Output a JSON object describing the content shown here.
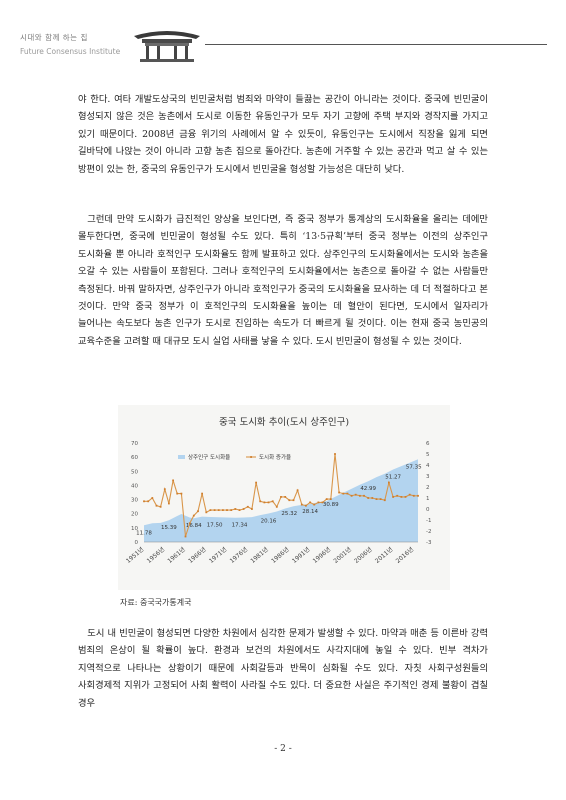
{
  "header": {
    "org_kr": "시대와 함께 하는 집",
    "org_en": "Future Consensus Institute"
  },
  "paragraphs": [
    "야 한다. 여타 개발도상국의 빈민굴처럼 범죄와 마약이 들끓는 공간이 아니라는 것이다. 중국에 빈민굴이 형성되지 않은 것은 농촌에서 도시로 이동한 유동인구가 모두 자기 고향에 주택 부지와 경작지를 가지고 있기 때문이다. 2008년 금융 위기의 사례에서 알 수 있듯이, 유동인구는 도시에서 직장을 잃게 되면 길바닥에 나앉는 것이 아니라 고향 농촌 집으로 돌아간다. 농촌에 거주할 수 있는 공간과 먹고 살 수 있는 방편이 있는 한, 중국의 유동인구가 도시에서 빈민굴을 형성할 가능성은 대단히 낮다.",
    "그런데 만약 도시화가 급진적인 양상을 보인다면, 즉 중국 정부가 통계상의 도시화율을 올리는 데에만 몰두한다면, 중국에 빈민굴이 형성될 수도 있다. 특히 ‘13·5규획’부터 중국 정부는 이전의 상주인구 도시화율 뿐 아니라 호적인구 도시화율도 함께 발표하고 있다. 상주인구의 도시화율에서는 도시와 농촌을 오갈 수 있는 사람들이 포함된다. 그러나 호적인구의 도시화율에서는 농촌으로 돌아갈 수 없는 사람들만 측정된다. 바꿔 말하자면, 상주인구가 아니라 호적인구가 중국의 도시화율을 묘사하는 데 더 적절하다고 본 것이다. 만약 중국 정부가 이 호적인구의 도시화율을 높이는 데 혈안이 된다면, 도시에서 일자리가 늘어나는 속도보다 농촌 인구가 도시로 진입하는 속도가 더 빠르게 될 것이다. 이는 현재 중국 농민공의 교육수준을 고려할 때 대규모 도시 실업 사태를 낳을 수 있다. 도시 빈민굴이 형성될 수 있는 것이다.",
    "도시 내 빈민굴이 형성되면 다양한 차원에서 심각한 문제가 발생할 수 있다. 마약과 매춘 등 이른바 강력 범죄의 온상이 될 확률이 높다. 환경과 보건의 차원에서도 사각지대에 놓일 수 있다. 빈부 격차가 지역적으로 나타나는 상황이기 때문에 사회갈등과 반목이 심화될 수도 있다. 자칫 사회구성원들의 사회경제적 지위가 고정되어 사회 활력이 사라질 수도 있다. 더 중요한 사실은 주기적인 경제 불황이 겹칠 경우"
  ],
  "chart_data": {
    "type": "area",
    "title": "중국 도시화 추이(도시 상주인구)",
    "series": [
      {
        "name": "상주인구 도시화율",
        "type": "area",
        "axis": "left",
        "x": [
          1951,
          1953,
          1955,
          1957,
          1959,
          1960,
          1961,
          1962,
          1963,
          1965,
          1967,
          1969,
          1971,
          1973,
          1975,
          1977,
          1979,
          1981,
          1983,
          1985,
          1987,
          1989,
          1991,
          1993,
          1995,
          1997,
          1999,
          2001,
          2003,
          2005,
          2007,
          2009,
          2011,
          2013,
          2015,
          2017
        ],
        "values": [
          11.78,
          13.3,
          13.5,
          15.39,
          18.4,
          19.8,
          18.5,
          17.3,
          16.8,
          17.98,
          17.7,
          17.5,
          17.3,
          17.2,
          17.34,
          17.6,
          19.0,
          20.16,
          21.6,
          23.7,
          25.32,
          26.2,
          26.9,
          28.14,
          29.0,
          31.9,
          34.8,
          37.7,
          40.5,
          42.99,
          45.9,
          48.3,
          51.27,
          53.7,
          56.1,
          58.5
        ],
        "labels": [
          {
            "x": 1951,
            "text": "11.78"
          },
          {
            "x": 1957,
            "text": "15.39"
          },
          {
            "x": 1963,
            "text": "16.84"
          },
          {
            "x": 1968,
            "text": "17.50"
          },
          {
            "x": 1974,
            "text": "17.34"
          },
          {
            "x": 1981,
            "text": "20.16"
          },
          {
            "x": 1986,
            "text": "25.32"
          },
          {
            "x": 1991,
            "text": "28.14"
          },
          {
            "x": 1996,
            "text": "30.89"
          },
          {
            "x": 2005,
            "text": "42.99"
          },
          {
            "x": 2011,
            "text": "51.27"
          },
          {
            "x": 2016,
            "text": "57.35"
          }
        ]
      },
      {
        "name": "도시화 증가율",
        "type": "line",
        "axis": "right",
        "x": [
          1951,
          1952,
          1953,
          1954,
          1955,
          1956,
          1957,
          1958,
          1959,
          1960,
          1961,
          1962,
          1963,
          1964,
          1965,
          1966,
          1967,
          1968,
          1969,
          1970,
          1971,
          1972,
          1973,
          1974,
          1975,
          1976,
          1977,
          1978,
          1979,
          1980,
          1981,
          1982,
          1983,
          1984,
          1985,
          1986,
          1987,
          1988,
          1989,
          1990,
          1991,
          1992,
          1993,
          1994,
          1995,
          1996,
          1997,
          1998,
          1999,
          2000,
          2001,
          2002,
          2003,
          2004,
          2005,
          2006,
          2007,
          2008,
          2009,
          2010,
          2011,
          2012,
          2013,
          2014,
          2015,
          2016,
          2017
        ],
        "values": [
          0.7,
          0.7,
          1.0,
          0.3,
          0.2,
          1.8,
          0.5,
          2.6,
          1.4,
          1.4,
          -2.5,
          -1.3,
          -0.6,
          -0.2,
          1.4,
          -0.3,
          -0.1,
          -0.1,
          -0.1,
          -0.1,
          -0.1,
          -0.1,
          0.0,
          -0.1,
          0.0,
          0.2,
          0.0,
          2.4,
          0.7,
          0.6,
          0.6,
          0.7,
          0.2,
          1.1,
          1.1,
          0.8,
          0.8,
          1.7,
          0.4,
          0.3,
          0.6,
          0.4,
          0.6,
          0.6,
          0.9,
          0.9,
          5.0,
          1.5,
          1.4,
          1.4,
          1.2,
          1.3,
          1.2,
          1.2,
          1.0,
          1.0,
          0.9,
          0.9,
          0.8,
          2.4,
          1.1,
          1.2,
          1.1,
          1.1,
          1.3,
          1.2,
          1.2
        ]
      }
    ],
    "xlim": [
      1951,
      2017
    ],
    "ylim_left": [
      0,
      70
    ],
    "ylim_right": [
      -3,
      6
    ],
    "yticks_left": [
      0,
      10,
      20,
      30,
      40,
      50,
      60,
      70
    ],
    "yticks_right": [
      -3,
      -2,
      -1,
      0,
      1,
      2,
      3,
      4,
      5,
      6
    ],
    "xticks": [
      "1951년",
      "1956년",
      "1961년",
      "1966년",
      "1971년",
      "1976년",
      "1981년",
      "1986년",
      "1991년",
      "1996년",
      "2001년",
      "2006년",
      "2011년",
      "2016년"
    ],
    "xtick_years": [
      1951,
      1956,
      1961,
      1966,
      1971,
      1976,
      1981,
      1986,
      1991,
      1996,
      2001,
      2006,
      2011,
      2016
    ],
    "legend_position": "top-left",
    "grid": false,
    "colors": {
      "area": "#b3d4ef",
      "line": "#d9964a",
      "line_marker": "#d07e2c"
    }
  },
  "source": "자료: 중국국가통계국",
  "page_number": "- 2 -"
}
